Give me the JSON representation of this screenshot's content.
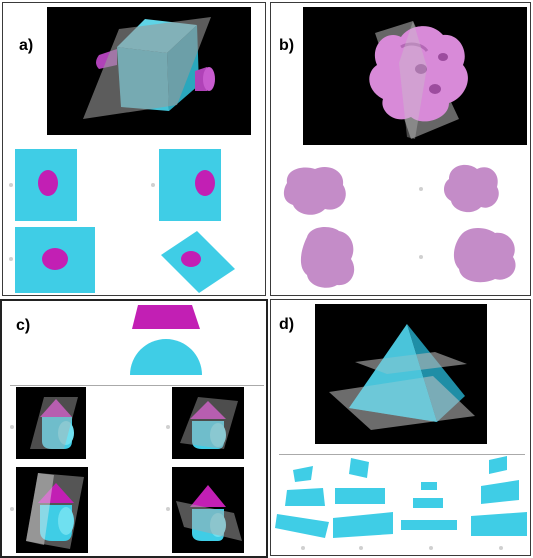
{
  "panels": [
    {
      "label": "a)"
    },
    {
      "label": "b)"
    },
    {
      "label": "c)"
    },
    {
      "label": "d)"
    }
  ],
  "colors": {
    "cyan": "#3fcde6",
    "magenta": "#c21fb4",
    "pink": "#c48cc8",
    "plane": "#9a9a9a",
    "background_dark": "#000000"
  }
}
